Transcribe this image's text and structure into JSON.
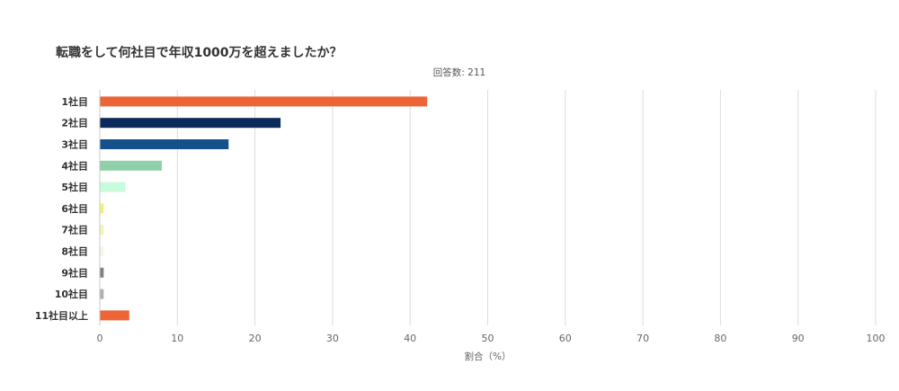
{
  "chart_data": {
    "type": "bar",
    "orientation": "horizontal",
    "title": "転職をして何社目で年収1000万を超えましたか？",
    "subtitle": "回答数: 211",
    "xlabel": "割合（%）",
    "ylabel": "",
    "xlim": [
      0,
      100
    ],
    "x_ticks": [
      "0",
      "10",
      "20",
      "30",
      "40",
      "50",
      "60",
      "70",
      "80",
      "90",
      "100"
    ],
    "grid": true,
    "categories": [
      "1社目",
      "2社目",
      "3社目",
      "4社目",
      "5社目",
      "6社目",
      "7社目",
      "8社目",
      "9社目",
      "10社目",
      "11社目以上"
    ],
    "values": [
      42.2,
      23.3,
      16.6,
      8.0,
      3.3,
      0.5,
      0.5,
      0.5,
      0.5,
      0.5,
      3.8
    ],
    "colors": [
      "#ed6437",
      "#0d2a5c",
      "#13508c",
      "#8fcfa9",
      "#c6fbdc",
      "#f6f07a",
      "#f4f3b3",
      "#f8f8e2",
      "#808080",
      "#b0b0b0",
      "#ed6437"
    ]
  }
}
